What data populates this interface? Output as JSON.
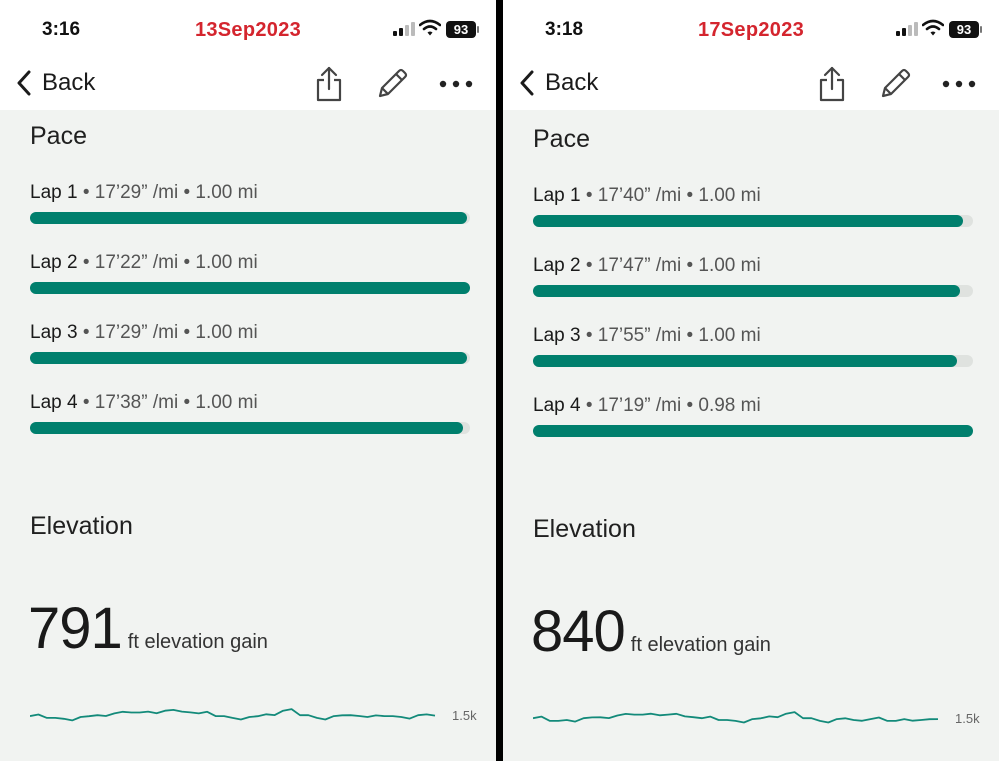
{
  "screens": [
    {
      "status": {
        "time": "3:16",
        "date": "13Sep2023",
        "battery": "93"
      },
      "nav": {
        "back_label": "Back"
      },
      "pace": {
        "title": "Pace",
        "laps": [
          {
            "name": "Lap 1",
            "detail": " • 17’29” /mi • 1.00 mi",
            "fill": 0.994
          },
          {
            "name": "Lap 2",
            "detail": " • 17’22” /mi • 1.00 mi",
            "fill": 1.0
          },
          {
            "name": "Lap 3",
            "detail": " • 17’29” /mi • 1.00 mi",
            "fill": 0.994
          },
          {
            "name": "Lap 4",
            "detail": " • 17’38” /mi • 1.00 mi",
            "fill": 0.985
          }
        ]
      },
      "elevation": {
        "title": "Elevation",
        "gain_value": "791",
        "gain_unit": "ft elevation gain",
        "axis_label": "1.5k",
        "profile": [
          0.55,
          0.45,
          0.4,
          0.5,
          0.6,
          0.7,
          0.75,
          0.8,
          0.85,
          0.8,
          0.7,
          0.55,
          0.45,
          0.5,
          0.65,
          0.85,
          0.6,
          0.45,
          0.55,
          0.6,
          0.5,
          0.55,
          0.5,
          0.6,
          0.58
        ]
      }
    },
    {
      "status": {
        "time": "3:18",
        "date": "17Sep2023",
        "battery": "93"
      },
      "nav": {
        "back_label": "Back"
      },
      "pace": {
        "title": "Pace",
        "laps": [
          {
            "name": "Lap 1",
            "detail": " • 17’40” /mi • 1.00 mi",
            "fill": 0.978
          },
          {
            "name": "Lap 2",
            "detail": " • 17’47” /mi • 1.00 mi",
            "fill": 0.971
          },
          {
            "name": "Lap 3",
            "detail": " • 17’55” /mi • 1.00 mi",
            "fill": 0.964
          },
          {
            "name": "Lap 4",
            "detail": " • 17’19” /mi • 0.98 mi",
            "fill": 1.0
          }
        ]
      },
      "elevation": {
        "title": "Elevation",
        "gain_value": "840",
        "gain_unit": "ft elevation gain",
        "axis_label": "1.5k",
        "profile": [
          0.6,
          0.45,
          0.5,
          0.6,
          0.65,
          0.75,
          0.8,
          0.85,
          0.8,
          0.7,
          0.6,
          0.5,
          0.45,
          0.55,
          0.7,
          0.85,
          0.6,
          0.45,
          0.55,
          0.5,
          0.55,
          0.45,
          0.55,
          0.5,
          0.55
        ]
      }
    }
  ],
  "colors": {
    "accent": "#007f6d",
    "date": "#d4252e",
    "background": "#f1f3f1"
  },
  "icons": [
    "chevron-left-icon",
    "share-icon",
    "pencil-icon",
    "more-icon",
    "signal-icon",
    "wifi-icon",
    "battery-icon"
  ]
}
